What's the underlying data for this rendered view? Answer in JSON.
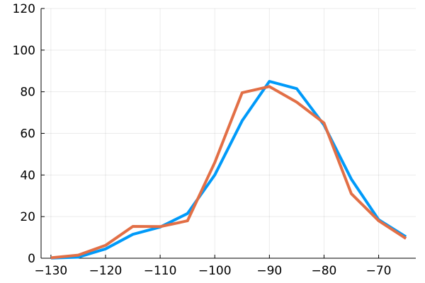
{
  "chart_data": {
    "type": "line",
    "title": "",
    "xlabel": "",
    "ylabel": "",
    "xlim": [
      -131.8,
      -63.2
    ],
    "ylim": [
      0,
      120
    ],
    "grid": true,
    "legend": "none",
    "x_ticks": [
      -130,
      -120,
      -110,
      -100,
      -90,
      -80,
      -70
    ],
    "x_tick_labels": [
      "−130",
      "−120",
      "−110",
      "−100",
      "−90",
      "−80",
      "−70"
    ],
    "y_ticks": [
      0,
      20,
      40,
      60,
      80,
      100,
      120
    ],
    "y_tick_labels": [
      "0",
      "20",
      "40",
      "60",
      "80",
      "100",
      "120"
    ],
    "x": [
      -130,
      -125,
      -120,
      -115,
      -110,
      -105,
      -100,
      -95,
      -90,
      -85,
      -80,
      -75,
      -70,
      -65
    ],
    "series": [
      {
        "color": "#009af9",
        "values": [
          0.1,
          0.5,
          4.5,
          11.5,
          15,
          21.5,
          40,
          66,
          85,
          81.5,
          64,
          38,
          18.5,
          10.3
        ]
      },
      {
        "color": "#e26f46",
        "values": [
          0.2,
          1.5,
          6.2,
          15.3,
          15.2,
          18,
          46,
          79.5,
          82.5,
          75,
          65,
          31,
          18,
          9.5
        ]
      }
    ]
  }
}
